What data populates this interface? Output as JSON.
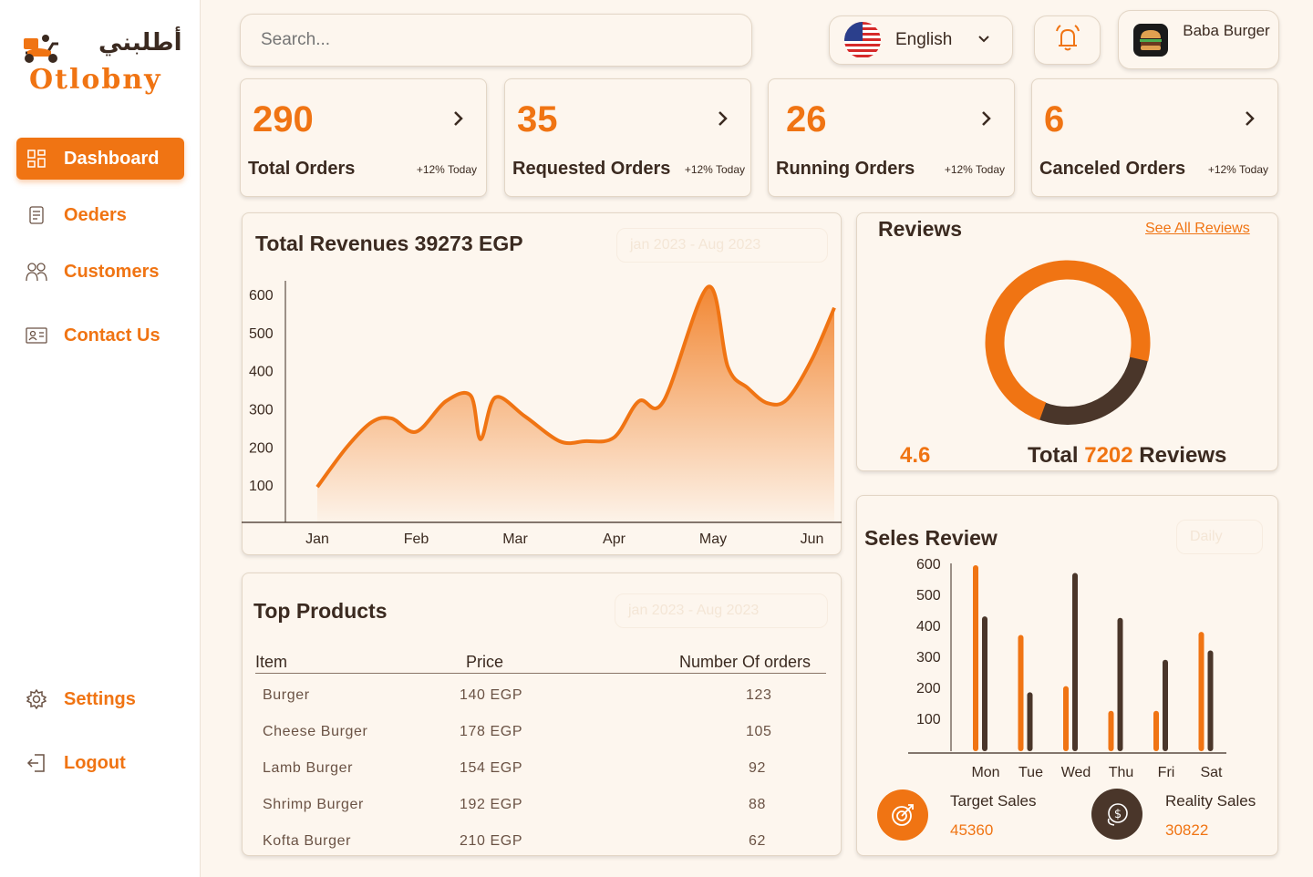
{
  "brand": {
    "arabic": "أطلبني",
    "latin": "Otlobny"
  },
  "sidebar": {
    "items": [
      {
        "label": "Dashboard",
        "icon": "grid-icon",
        "active": true
      },
      {
        "label": "Oeders",
        "icon": "document-icon",
        "active": false
      },
      {
        "label": "Customers",
        "icon": "users-icon",
        "active": false
      },
      {
        "label": "Contact Us",
        "icon": "contact-card-icon",
        "active": false
      }
    ],
    "bottom": [
      {
        "label": "Settings",
        "icon": "gear-icon"
      },
      {
        "label": "Logout",
        "icon": "logout-icon"
      }
    ]
  },
  "header": {
    "search_placeholder": "Search...",
    "language": "English",
    "profile_name": "Baba Burger"
  },
  "stats": [
    {
      "value": "290",
      "label": "Total Orders",
      "delta": "+12% Today"
    },
    {
      "value": "35",
      "label": "Requested Orders",
      "delta": "+12% Today"
    },
    {
      "value": "26",
      "label": "Running Orders",
      "delta": "+12% Today"
    },
    {
      "value": "6",
      "label": "Canceled Orders",
      "delta": "+12% Today"
    }
  ],
  "revenue": {
    "title": "Total Revenues 39273 EGP",
    "range": "jan 2023 - Aug 2023"
  },
  "reviews": {
    "title": "Reviews",
    "see_all": "See All Reviews",
    "rating": "4.6",
    "total_prefix": "Total ",
    "total_value": "7202",
    "total_suffix": " Reviews"
  },
  "top_products": {
    "title": "Top Products",
    "range": "jan 2023 - Aug 2023",
    "headers": [
      "Item",
      "Price",
      "Number Of orders"
    ],
    "rows": [
      [
        "Burger",
        "140 EGP",
        "123"
      ],
      [
        "Cheese Burger",
        "178 EGP",
        "105"
      ],
      [
        "Lamb Burger",
        "154 EGP",
        "92"
      ],
      [
        "Shrimp Burger",
        "192 EGP",
        "88"
      ],
      [
        "Kofta Burger",
        "210 EGP",
        "62"
      ]
    ]
  },
  "sales_review": {
    "title": "Seles Review",
    "period": "Daily",
    "target_label": "Target Sales",
    "target_value": "45360",
    "reality_label": "Reality Sales",
    "reality_value": "30822"
  },
  "colors": {
    "accent": "#f07413",
    "dark": "#4a362a",
    "background": "#fdf6ee"
  },
  "chart_data": [
    {
      "type": "area",
      "title": "",
      "categories": [
        "Jan",
        "Feb",
        "Mar",
        "Apr",
        "May",
        "Jun"
      ],
      "x": [
        0,
        0.3,
        0.55,
        0.75,
        1.0,
        1.3,
        1.55,
        1.65,
        1.8,
        2.1,
        2.45,
        2.7,
        3.0,
        3.25,
        3.5,
        3.95,
        4.15,
        4.35,
        4.55,
        4.75,
        5.0,
        5.25
      ],
      "values": [
        95,
        200,
        265,
        275,
        240,
        320,
        335,
        220,
        330,
        280,
        215,
        215,
        225,
        320,
        320,
        620,
        410,
        355,
        315,
        325,
        430,
        565
      ],
      "ylim": [
        50,
        600
      ],
      "yticks": [
        100,
        200,
        300,
        400,
        500,
        600
      ]
    },
    {
      "type": "donut",
      "series": [
        {
          "name": "",
          "value": 0.73
        },
        {
          "name": "",
          "value": 0.27
        }
      ]
    },
    {
      "type": "bar",
      "categories": [
        "Mon",
        "Tue",
        "Wed",
        "Thu",
        "Fri",
        "Sat"
      ],
      "series": [
        {
          "name": "Target Sales",
          "values": [
            600,
            375,
            210,
            130,
            130,
            385
          ]
        },
        {
          "name": "Reality Sales",
          "values": [
            435,
            190,
            575,
            430,
            295,
            325
          ]
        }
      ],
      "ylim": [
        0,
        600
      ],
      "yticks": [
        100,
        200,
        300,
        400,
        500,
        600
      ]
    }
  ]
}
